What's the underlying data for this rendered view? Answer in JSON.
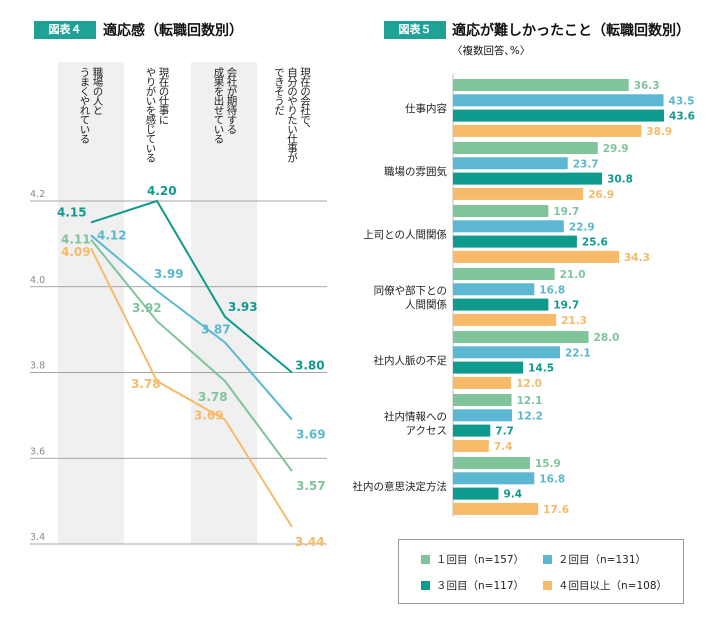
{
  "left_panel": {
    "badge": "図表４",
    "title": "適応感（転職回数別）"
  },
  "right_panel": {
    "badge": "図表５",
    "title": "適応が難しかったこと（転職回数別）",
    "subtitle": "〈複数回答､%〉"
  },
  "colors": {
    "series1": "#7fc49b",
    "series2": "#5bb7d2",
    "series3": "#0f9a8e",
    "series4": "#f6ba68",
    "badge": "#1fa195",
    "band": "#f0f0f0",
    "grid": "#8a8a8a"
  },
  "chart_data": [
    {
      "type": "line",
      "categories": [
        "職場の人と\nうまくやれている",
        "現在の仕事に\nやりがいを感じている",
        "会社が期待する\n成果を出せている",
        "現在の会社で、\n自分のやりたい仕事が\nできそうだ"
      ],
      "yticks": [
        "4.2",
        "4.0",
        "3.8",
        "3.6",
        "3.4"
      ],
      "ylim": [
        3.4,
        4.2
      ],
      "series": [
        {
          "name": "１回目（n=157）",
          "values": [
            4.11,
            3.92,
            3.78,
            3.57
          ],
          "labels": [
            "4.11",
            "3.92",
            "3.78",
            "3.57"
          ]
        },
        {
          "name": "２回目（n=131）",
          "values": [
            4.12,
            3.99,
            3.87,
            3.69
          ],
          "labels": [
            "4.12",
            "3.99",
            "3.87",
            "3.69"
          ]
        },
        {
          "name": "３回目（n=117）",
          "values": [
            4.15,
            4.2,
            3.93,
            3.8
          ],
          "labels": [
            "4.15",
            "4.20",
            "3.93",
            "3.80"
          ]
        },
        {
          "name": "４回目以上（n=108）",
          "values": [
            4.09,
            3.78,
            3.69,
            3.44
          ],
          "labels": [
            "4.09",
            "3.78",
            "3.69",
            "3.44"
          ]
        }
      ]
    },
    {
      "type": "bar",
      "orientation": "horizontal",
      "categories": [
        "仕事内容",
        "職場の雰囲気",
        "上司との人間関係",
        "同僚や部下との\n人間関係",
        "社内人脈の不足",
        "社内情報への\nアクセス",
        "社内の意思決定方法"
      ],
      "series": [
        {
          "name": "１回目（n=157）",
          "values": [
            36.3,
            29.9,
            19.7,
            21.0,
            28.0,
            12.1,
            15.9
          ],
          "labels": [
            "36.3",
            "29.9",
            "19.7",
            "21.0",
            "28.0",
            "12.1",
            "15.9"
          ]
        },
        {
          "name": "２回目（n=131）",
          "values": [
            43.5,
            23.7,
            22.9,
            16.8,
            22.1,
            12.2,
            16.8
          ],
          "labels": [
            "43.5",
            "23.7",
            "22.9",
            "16.8",
            "22.1",
            "12.2",
            "16.8"
          ]
        },
        {
          "name": "３回目（n=117）",
          "values": [
            43.6,
            30.8,
            25.6,
            19.7,
            14.5,
            7.7,
            9.4
          ],
          "labels": [
            "43.6",
            "30.8",
            "25.6",
            "19.7",
            "14.5",
            "7.7",
            "9.4"
          ]
        },
        {
          "name": "４回目以上（n=108）",
          "values": [
            38.9,
            26.9,
            34.3,
            21.3,
            12.0,
            7.4,
            17.6
          ],
          "labels": [
            "38.9",
            "26.9",
            "34.3",
            "21.3",
            "12.0",
            "7.4",
            "17.6"
          ]
        }
      ],
      "legend": "bottom"
    }
  ],
  "legend_items": [
    "１回目（n=157）",
    "２回目（n=131）",
    "３回目（n=117）",
    "４回目以上（n=108）"
  ]
}
